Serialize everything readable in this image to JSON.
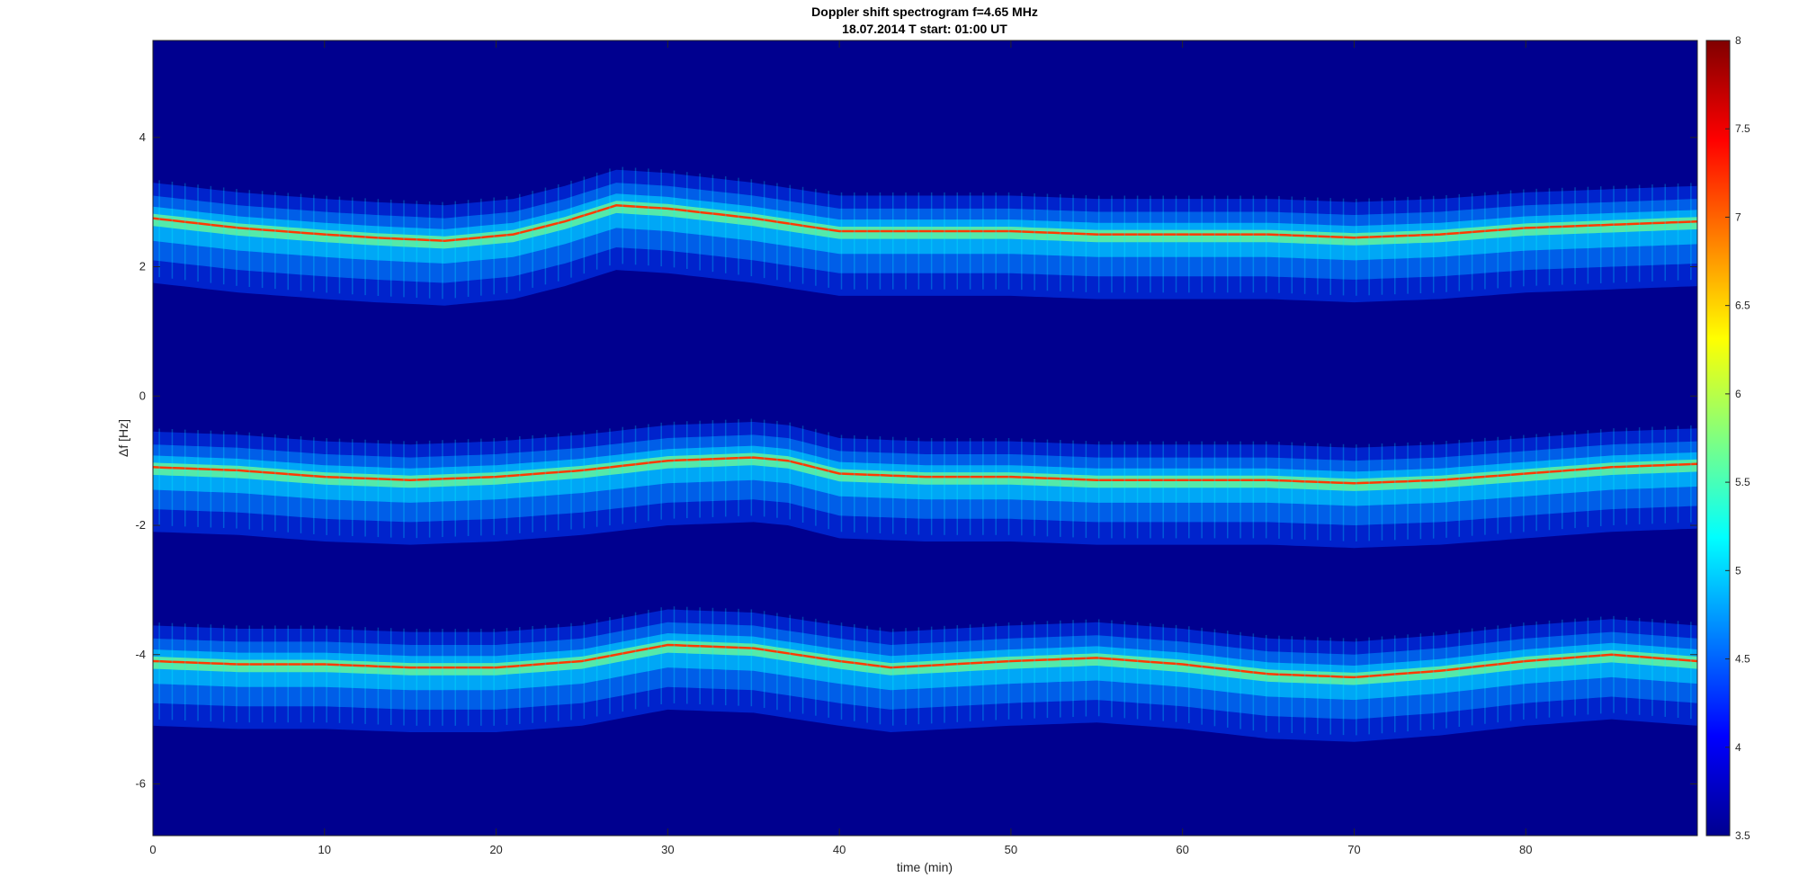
{
  "chart_data": {
    "type": "heatmap",
    "title": "Doppler shift spectrogram f=4.65 MHz",
    "subtitle": "18.07.2014   T start: 01:00 UT",
    "xlabel": "time (min)",
    "ylabel": "Δf [Hz]",
    "xlim": [
      0,
      90
    ],
    "ylim": [
      -6.8,
      5.5
    ],
    "xticks": [
      0,
      10,
      20,
      30,
      40,
      50,
      60,
      70,
      80
    ],
    "yticks": [
      -6,
      -4,
      -2,
      0,
      2,
      4
    ],
    "colorbar": {
      "colormap": "jet",
      "range": [
        3.5,
        8
      ],
      "ticks": [
        3.5,
        4,
        4.5,
        5,
        5.5,
        6,
        6.5,
        7,
        7.5,
        8
      ]
    },
    "background_color": "#00008f",
    "traces": [
      {
        "time": [
          0,
          5,
          10,
          13,
          17,
          21,
          24,
          27,
          30,
          35,
          40,
          50,
          55,
          60,
          65,
          70,
          75,
          80,
          85,
          90
        ],
        "df": [
          2.75,
          2.6,
          2.5,
          2.45,
          2.4,
          2.5,
          2.7,
          2.95,
          2.9,
          2.75,
          2.55,
          2.55,
          2.5,
          2.5,
          2.5,
          2.45,
          2.5,
          2.6,
          2.65,
          2.7
        ]
      },
      {
        "time": [
          0,
          5,
          10,
          15,
          20,
          25,
          30,
          35,
          37,
          40,
          45,
          50,
          55,
          60,
          65,
          70,
          75,
          80,
          85,
          90
        ],
        "df": [
          -1.1,
          -1.15,
          -1.25,
          -1.3,
          -1.25,
          -1.15,
          -1.0,
          -0.95,
          -1.0,
          -1.2,
          -1.25,
          -1.25,
          -1.3,
          -1.3,
          -1.3,
          -1.35,
          -1.3,
          -1.2,
          -1.1,
          -1.05
        ]
      },
      {
        "time": [
          0,
          5,
          10,
          15,
          20,
          25,
          30,
          35,
          40,
          43,
          50,
          55,
          60,
          65,
          70,
          75,
          80,
          85,
          90
        ],
        "df": [
          -4.1,
          -4.15,
          -4.15,
          -4.2,
          -4.2,
          -4.1,
          -3.85,
          -3.9,
          -4.1,
          -4.2,
          -4.1,
          -4.05,
          -4.15,
          -4.3,
          -4.35,
          -4.25,
          -4.1,
          -4.0,
          -4.1
        ]
      }
    ]
  }
}
